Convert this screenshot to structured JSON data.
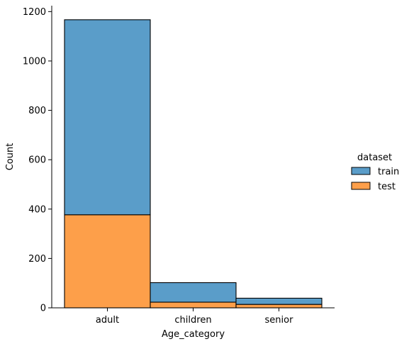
{
  "chart_data": {
    "type": "bar",
    "stacked": true,
    "categories": [
      "adult",
      "children",
      "senior"
    ],
    "series": [
      {
        "name": "test",
        "values": [
          377,
          23,
          14
        ]
      },
      {
        "name": "train",
        "values": [
          790,
          79,
          25
        ]
      }
    ],
    "xlabel": "Age_category",
    "ylabel": "Count",
    "ylim": [
      0,
      1224
    ],
    "yticks": [
      0,
      200,
      400,
      600,
      800,
      1000,
      1200
    ],
    "legend_title": "dataset",
    "legend_entries": [
      "train",
      "test"
    ],
    "legend_placement": "right",
    "grid": false,
    "colors": {
      "train": "#5a9dc9",
      "test": "#fd9f4a",
      "edge": "#000000"
    }
  }
}
